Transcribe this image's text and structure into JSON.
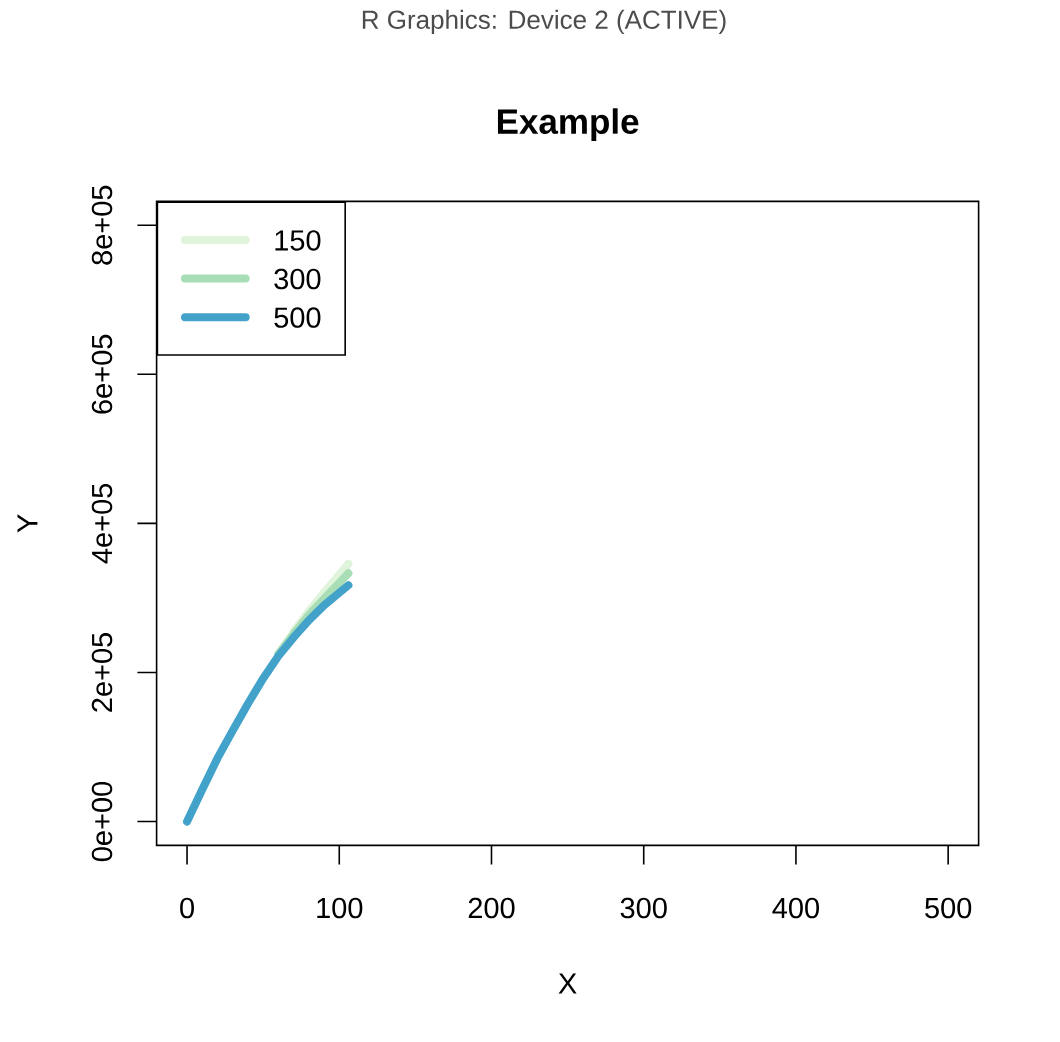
{
  "chart_data": {
    "type": "line",
    "title": "Example",
    "xlabel": "X",
    "ylabel": "Y",
    "annotations": [
      "R Graphics: Device 2 (ACTIVE)"
    ],
    "x": [
      0,
      10,
      20,
      30,
      40,
      50,
      60,
      70,
      80,
      90,
      100,
      106
    ],
    "series": [
      {
        "name": "150",
        "color": "#e0f3db",
        "values": [
          null,
          null,
          null,
          null,
          null,
          null,
          null,
          255000,
          282000,
          307000,
          331000,
          346000
        ]
      },
      {
        "name": "300",
        "color": "#a8ddb5",
        "values": [
          null,
          null,
          null,
          null,
          null,
          null,
          225000,
          252000,
          277000,
          299000,
          320000,
          333000
        ]
      },
      {
        "name": "500",
        "color": "#43a2ca",
        "values": [
          0,
          43000,
          85000,
          122000,
          158000,
          192000,
          222000,
          247000,
          270000,
          290000,
          307000,
          317000
        ]
      }
    ],
    "xlim": [
      -20,
      520
    ],
    "xticks": [
      0,
      100,
      200,
      300,
      400,
      500
    ],
    "ylim": [
      -32000,
      832000
    ],
    "yticks": [
      {
        "value": 0,
        "label": "0e+00"
      },
      {
        "value": 200000,
        "label": "2e+05"
      },
      {
        "value": 400000,
        "label": "4e+05"
      },
      {
        "value": 600000,
        "label": "6e+05"
      },
      {
        "value": 800000,
        "label": "8e+05"
      }
    ],
    "legend": "top left",
    "line_style": "solid"
  }
}
